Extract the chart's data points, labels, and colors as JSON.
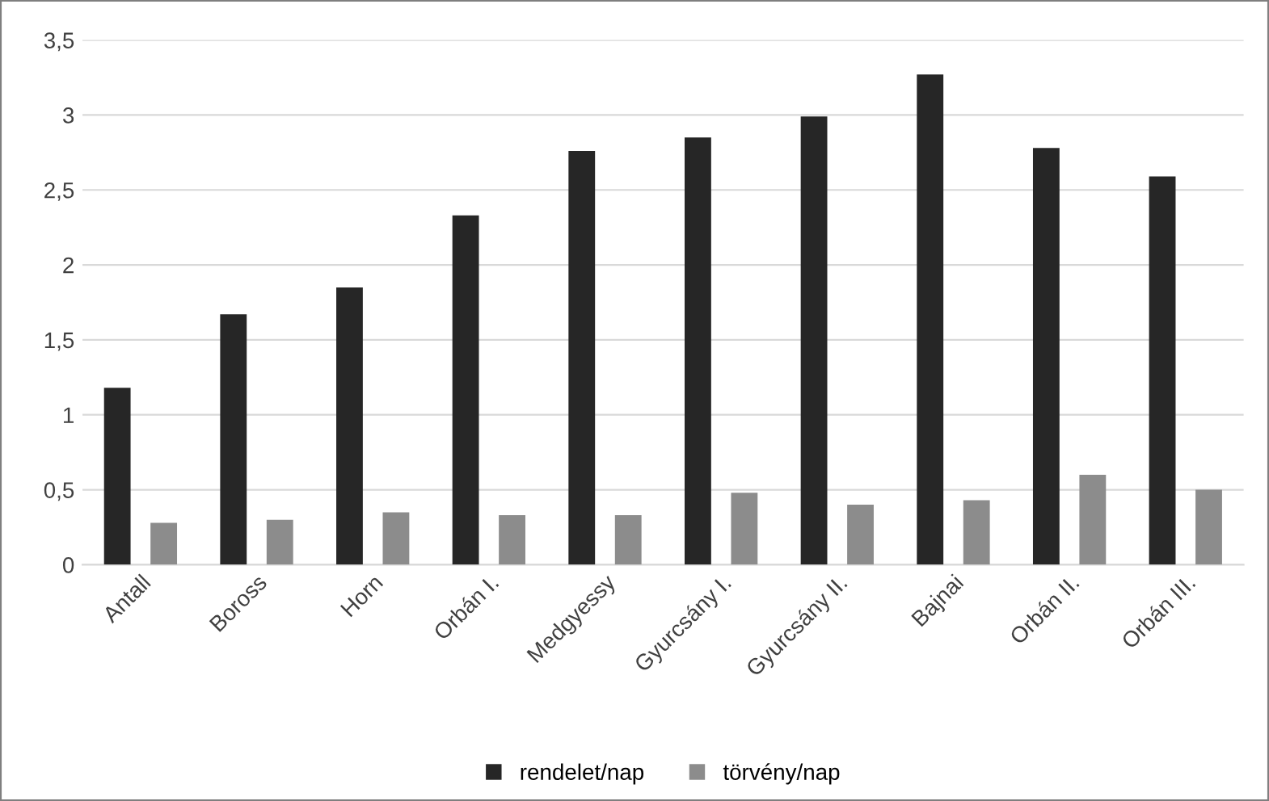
{
  "chart_data": {
    "type": "bar",
    "categories": [
      "Antall",
      "Boross",
      "Horn",
      "Orbán I.",
      "Medgyessy",
      "Gyurcsány I.",
      "Gyurcsány II.",
      "Bajnai",
      "Orbán II.",
      "Orbán III."
    ],
    "series": [
      {
        "name": "rendelet/nap",
        "color": "#262626",
        "values": [
          1.18,
          1.67,
          1.85,
          2.33,
          2.76,
          2.85,
          2.99,
          3.27,
          2.78,
          2.59
        ]
      },
      {
        "name": "törvény/nap",
        "color": "#8c8c8c",
        "values": [
          0.28,
          0.3,
          0.35,
          0.33,
          0.33,
          0.48,
          0.4,
          0.43,
          0.6,
          0.5
        ]
      }
    ],
    "ylim": [
      0,
      3.5
    ],
    "yticks": [
      0,
      {
        "value": 0.5,
        "label": "0,5"
      },
      1,
      {
        "value": 1.5,
        "label": "1,5"
      },
      2,
      {
        "value": 2.5,
        "label": "2,5"
      },
      3,
      {
        "value": 3.5,
        "label": "3,5"
      }
    ],
    "grid": "y",
    "legend": "bottom"
  }
}
